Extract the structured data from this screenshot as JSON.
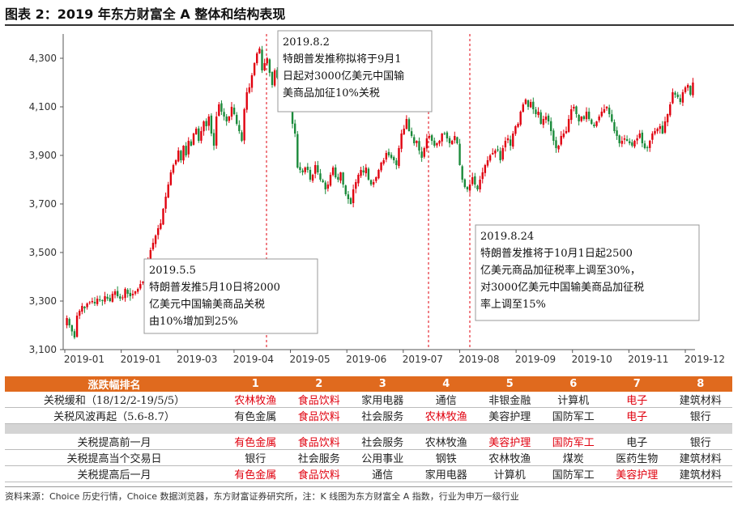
{
  "title": "图表 2：2019 年东方财富全 A 整体和结构表现",
  "chart_data": {
    "type": "candlestick",
    "x_tick_labels": [
      "2019-01",
      "2019-01",
      "2019-03",
      "2019-04",
      "2019-05",
      "2019-06",
      "2019-07",
      "2019-08",
      "2019-09",
      "2019-10",
      "2019-11",
      "2019-12"
    ],
    "y_tick_labels": [
      "3,100",
      "3,300",
      "3,500",
      "3,700",
      "3,900",
      "4,100",
      "4,300"
    ],
    "ylim": [
      3100,
      4400
    ],
    "up_color": "#e0000e",
    "down_color": "#1a8a3a",
    "close_series": [
      3230,
      3200,
      3175,
      3150,
      3240,
      3260,
      3280,
      3270,
      3290,
      3295,
      3300,
      3290,
      3310,
      3305,
      3300,
      3320,
      3310,
      3300,
      3330,
      3340,
      3320,
      3310,
      3315,
      3350,
      3330,
      3320,
      3330,
      3340,
      3350,
      3370,
      3380,
      3450,
      3470,
      3510,
      3540,
      3570,
      3600,
      3620,
      3680,
      3730,
      3780,
      3830,
      3860,
      3880,
      3920,
      3880,
      3940,
      3900,
      3960,
      3940,
      3990,
      4010,
      3960,
      4000,
      4040,
      4020,
      4060,
      3990,
      3940,
      4060,
      4110,
      4080,
      4060,
      4040,
      4060,
      4100,
      4070,
      4030,
      4000,
      3960,
      4090,
      4160,
      4180,
      4230,
      4280,
      4320,
      4340,
      4250,
      4280,
      4300,
      4240,
      4190,
      4250,
      4220,
      4200,
      4160,
      4170,
      4120,
      4090,
      4030,
      3990,
      3850,
      3840,
      3830,
      3850,
      3840,
      3800,
      3820,
      3860,
      3830,
      3800,
      3790,
      3760,
      3780,
      3820,
      3850,
      3810,
      3800,
      3830,
      3780,
      3740,
      3720,
      3700,
      3760,
      3790,
      3820,
      3840,
      3830,
      3850,
      3800,
      3780,
      3790,
      3810,
      3840,
      3870,
      3880,
      3910,
      3900,
      3890,
      3880,
      3860,
      3930,
      3990,
      4010,
      4050,
      4000,
      3980,
      3950,
      3960,
      3920,
      3890,
      3930,
      3970,
      3980,
      3960,
      3940,
      3950,
      3960,
      3990,
      3990,
      3970,
      3950,
      3960,
      3980,
      3950,
      3860,
      3800,
      3770,
      3760,
      3780,
      3810,
      3780,
      3760,
      3800,
      3830,
      3860,
      3880,
      3900,
      3910,
      3920,
      3920,
      3880,
      3930,
      3960,
      3970,
      3940,
      3990,
      4020,
      4030,
      4080,
      4110,
      4130,
      4100,
      4120,
      4090,
      4070,
      4080,
      4030,
      4050,
      4060,
      4040,
      4000,
      3960,
      3930,
      3940,
      3980,
      3990,
      4000,
      4050,
      4090,
      4100,
      4070,
      4040,
      4060,
      4050,
      4080,
      4050,
      4030,
      4020,
      4040,
      4060,
      4080,
      4090,
      4100,
      4070,
      4040,
      4000,
      3980,
      3950,
      3960,
      3970,
      3960,
      3950,
      3940,
      3960,
      3970,
      3990,
      3950,
      3930,
      3930,
      3960,
      3990,
      4000,
      4010,
      4020,
      3990,
      4040,
      4070,
      4110,
      4160,
      4150,
      4140,
      4120,
      4160,
      4180,
      4190,
      4150,
      4200
    ],
    "vlines": [
      "2019-05-06",
      "2019-08-02",
      "2019-08-26"
    ],
    "annotations": [
      {
        "date": "2019.5.5",
        "text": [
          "特朗普发推5月10日将2000",
          "亿美元中国输美商品关税",
          "由10%增加到25%"
        ]
      },
      {
        "date": "2019.8.2",
        "text": [
          "特朗普发推称拟将于9月1",
          "日起对3000亿美元中国输",
          "美商品加征10%关税"
        ]
      },
      {
        "date": "2019.8.24",
        "text": [
          "特朗普发推将于10月1日起2500",
          "亿美元商品加征税率上调至30%，",
          "对3000亿美元中国输美商品加征税",
          "率上调至15%"
        ]
      }
    ]
  },
  "rank_table": {
    "header": [
      "涨跌幅排名",
      "1",
      "2",
      "3",
      "4",
      "5",
      "6",
      "7",
      "8"
    ],
    "rows_top": [
      {
        "label": "关税缓和（18/12/2-19/5/5）",
        "cells": [
          "农林牧渔",
          "食品饮料",
          "家用电器",
          "通信",
          "非银金融",
          "计算机",
          "电子",
          "建筑材料"
        ],
        "red": [
          true,
          true,
          false,
          false,
          false,
          false,
          true,
          false
        ]
      },
      {
        "label": "关税风波再起（5.6-8.7）",
        "cells": [
          "有色金属",
          "食品饮料",
          "社会服务",
          "农林牧渔",
          "美容护理",
          "国防军工",
          "电子",
          "银行"
        ],
        "red": [
          false,
          true,
          false,
          true,
          false,
          false,
          true,
          false
        ]
      }
    ],
    "rows_bottom": [
      {
        "label": "关税提高前一月",
        "cells": [
          "有色金属",
          "食品饮料",
          "社会服务",
          "农林牧渔",
          "美容护理",
          "国防军工",
          "电子",
          "银行"
        ],
        "red": [
          true,
          true,
          false,
          false,
          true,
          true,
          false,
          false
        ]
      },
      {
        "label": "关税提高当个交易日",
        "cells": [
          "银行",
          "社会服务",
          "公用事业",
          "钢铁",
          "农林牧渔",
          "煤炭",
          "医药生物",
          "建筑材料"
        ],
        "red": [
          false,
          false,
          false,
          false,
          false,
          false,
          false,
          false
        ]
      },
      {
        "label": "关税提高后一月",
        "cells": [
          "有色金属",
          "食品饮料",
          "通信",
          "家用电器",
          "计算机",
          "国防军工",
          "美容护理",
          "建筑材料"
        ],
        "red": [
          true,
          true,
          false,
          false,
          false,
          false,
          true,
          false
        ]
      }
    ]
  },
  "source": "资料来源：Choice 历史行情，Choice 数据浏览器，东方财富证券研究所，注：K 线图为东方财富全 A 指数，行业为申万一级行业"
}
